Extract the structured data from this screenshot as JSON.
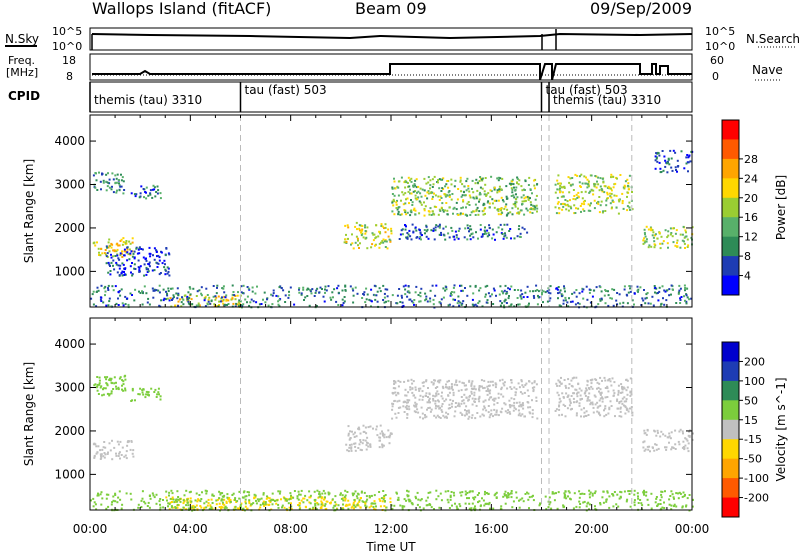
{
  "header": {
    "site": "Wallops Island (fitACF)",
    "beam": "Beam 09",
    "date": "09/Sep/2009"
  },
  "top_panels": {
    "nsky_label": "N.Sky",
    "nsearch_label": "N.Search",
    "noise_ticks": [
      "10^5",
      "10^0"
    ],
    "freq_label_line1": "Freq.",
    "freq_label_line2": "[MHz]",
    "freq_ticks": [
      "18",
      "8"
    ],
    "nave_label": "Nave",
    "nave_ticks": [
      "60",
      "0"
    ],
    "cpid_label": "CPID",
    "cpid_segments": [
      {
        "label": "themis (tau) 3310",
        "start": 0,
        "end": 6
      },
      {
        "label": "tau (fast) 503",
        "start": 6,
        "end": 18
      },
      {
        "label": "tau (fast) 503",
        "start": 18,
        "end": 18.3
      },
      {
        "label": "themis (tau) 3310",
        "start": 18.3,
        "end": 24
      }
    ]
  },
  "chart_data": [
    {
      "type": "heatmap",
      "title": "",
      "xlabel": "",
      "ylabel": "Slant Range [km]",
      "xlim": [
        0,
        24
      ],
      "ylim": [
        180,
        4600
      ],
      "x_ticks": [
        "00:00",
        "04:00",
        "08:00",
        "12:00",
        "16:00",
        "20:00",
        "00:00"
      ],
      "y_ticks": [
        1000,
        2000,
        3000,
        4000
      ],
      "colorbar": {
        "label": "Power [dB]",
        "ticks": [
          "4",
          "8",
          "12",
          "16",
          "20",
          "24",
          "28"
        ],
        "colors": [
          "#0000ff",
          "#1e3cb4",
          "#2e8b57",
          "#58b06a",
          "#9acd32",
          "#ffd700",
          "#ffa500",
          "#ff5a00",
          "#ff0000"
        ]
      },
      "regions": [
        {
          "t0": 0.1,
          "t1": 1.7,
          "r0": 1350,
          "r1": 1800,
          "value": 22
        },
        {
          "t0": 0.1,
          "t1": 1.4,
          "r0": 2800,
          "r1": 3300,
          "value": 10
        },
        {
          "t0": 1.6,
          "t1": 2.8,
          "r0": 2700,
          "r1": 3000,
          "value": 8
        },
        {
          "t0": 0.6,
          "t1": 3.2,
          "r0": 900,
          "r1": 1600,
          "value": 5
        },
        {
          "t0": 10.1,
          "t1": 12.0,
          "r0": 1550,
          "r1": 2150,
          "value": 20
        },
        {
          "t0": 12.0,
          "t1": 17.8,
          "r0": 2300,
          "r1": 3200,
          "value": 16
        },
        {
          "t0": 12.3,
          "t1": 17.5,
          "r0": 1750,
          "r1": 2100,
          "value": 8
        },
        {
          "t0": 18.5,
          "t1": 21.6,
          "r0": 2350,
          "r1": 3250,
          "value": 18
        },
        {
          "t0": 22.0,
          "t1": 24.0,
          "r0": 1550,
          "r1": 2050,
          "value": 18
        },
        {
          "t0": 22.5,
          "t1": 24.0,
          "r0": 3300,
          "r1": 3800,
          "value": 6
        },
        {
          "t0": 3.0,
          "t1": 6.0,
          "r0": 200,
          "r1": 480,
          "value": 22
        },
        {
          "t0": 0.0,
          "t1": 24.0,
          "r0": 190,
          "r1": 700,
          "value": 9
        }
      ]
    },
    {
      "type": "heatmap",
      "title": "",
      "xlabel": "Time UT",
      "ylabel": "Slant Range [km]",
      "xlim": [
        0,
        24
      ],
      "ylim": [
        180,
        4600
      ],
      "x_ticks": [
        "00:00",
        "04:00",
        "08:00",
        "12:00",
        "16:00",
        "20:00",
        "00:00"
      ],
      "y_ticks": [
        1000,
        2000,
        3000,
        4000
      ],
      "colorbar": {
        "label": "Velocity [m s^-1]",
        "ticks": [
          "200",
          "100",
          "50",
          "15",
          "-15",
          "-50",
          "-100",
          "-200"
        ],
        "colors": [
          "#0000cd",
          "#1e3cb4",
          "#2e8b57",
          "#7ccd3c",
          "#c0c0c0",
          "#ffd700",
          "#ffa500",
          "#ff5a00",
          "#ff0000"
        ]
      },
      "regions": [
        {
          "t0": 0.1,
          "t1": 1.7,
          "r0": 1350,
          "r1": 1800,
          "value": 0
        },
        {
          "t0": 0.1,
          "t1": 1.4,
          "r0": 2800,
          "r1": 3300,
          "value": 30
        },
        {
          "t0": 1.6,
          "t1": 2.8,
          "r0": 2700,
          "r1": 3000,
          "value": 30
        },
        {
          "t0": 10.1,
          "t1": 12.0,
          "r0": 1550,
          "r1": 2150,
          "value": 0
        },
        {
          "t0": 12.0,
          "t1": 17.8,
          "r0": 2300,
          "r1": 3200,
          "value": 0
        },
        {
          "t0": 18.5,
          "t1": 21.6,
          "r0": 2350,
          "r1": 3250,
          "value": 0
        },
        {
          "t0": 22.0,
          "t1": 24.0,
          "r0": 1550,
          "r1": 2050,
          "value": 0
        },
        {
          "t0": 3.0,
          "t1": 12.0,
          "r0": 200,
          "r1": 500,
          "value": -40
        },
        {
          "t0": 0.0,
          "t1": 24.0,
          "r0": 190,
          "r1": 650,
          "value": 25
        }
      ]
    }
  ]
}
